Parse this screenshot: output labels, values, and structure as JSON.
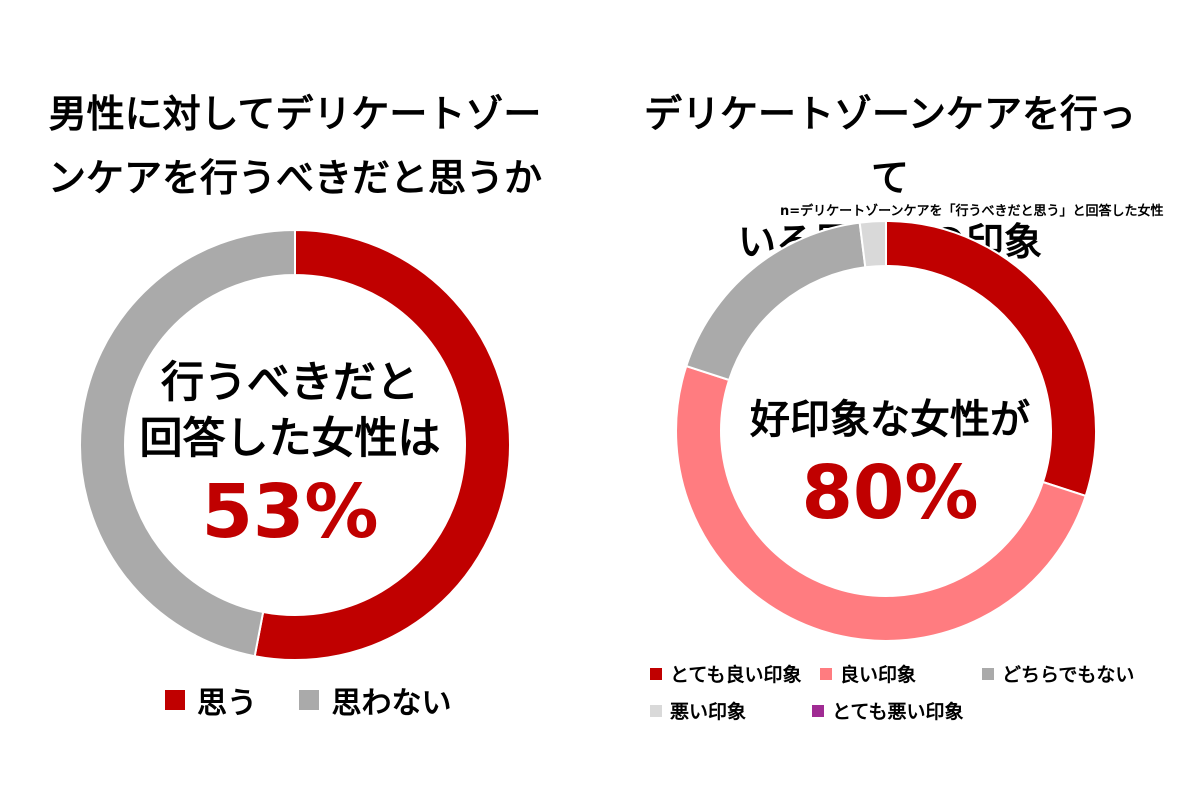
{
  "left": {
    "title_line1": "男性に対してデリケートゾー",
    "title_line2": "ンケアを行うべきだと思うか",
    "center_line1": "行うべきだと",
    "center_line2": "回答した女性は",
    "center_value": "53%",
    "legend": [
      {
        "label": "思う",
        "color": "#c00000"
      },
      {
        "label": "思わない",
        "color": "#aaaaaa"
      }
    ]
  },
  "right": {
    "title_line1": "デリケートゾーンケアを行って",
    "title_line2": "いる男性への印象",
    "note": "n=デリケートゾーンケアを「行うべきだと思う」と回答した女性",
    "center_line1": "好印象な女性が",
    "center_value": "80%",
    "legend": [
      {
        "label": "とても良い印象",
        "color": "#c00000"
      },
      {
        "label": "良い印象",
        "color": "#ff7c80"
      },
      {
        "label": "どちらでもない",
        "color": "#aaaaaa"
      },
      {
        "label": "悪い印象",
        "color": "#d9d9d9"
      },
      {
        "label": "とても悪い印象",
        "color": "#a02b93"
      }
    ]
  },
  "chart_data": [
    {
      "type": "pie",
      "title": "男性に対してデリケートゾーンケアを行うべきだと思うか",
      "categories": [
        "思う",
        "思わない"
      ],
      "values": [
        53,
        47
      ],
      "colors": [
        "#c00000",
        "#aaaaaa"
      ],
      "legend_position": "bottom"
    },
    {
      "type": "pie",
      "title": "デリケートゾーンケアを行っている男性への印象",
      "categories": [
        "とても良い印象",
        "良い印象",
        "どちらでもない",
        "悪い印象",
        "とても悪い印象"
      ],
      "values": [
        30,
        50,
        18,
        2,
        0
      ],
      "colors": [
        "#c00000",
        "#ff7c80",
        "#aaaaaa",
        "#d9d9d9",
        "#a02b93"
      ],
      "legend_position": "bottom"
    }
  ]
}
